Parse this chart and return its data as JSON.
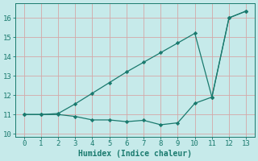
{
  "xlabel": "Humidex (Indice chaleur)",
  "background_color": "#c6eaea",
  "grid_major_color": "#d4a8a8",
  "grid_minor_color": "#ddc8c8",
  "line_color": "#1a7a6e",
  "x_upper": [
    0,
    1,
    2,
    3,
    4,
    5,
    6,
    7,
    8,
    9,
    10,
    11,
    12,
    13
  ],
  "y_upper": [
    11.0,
    11.0,
    11.05,
    11.55,
    12.1,
    12.65,
    13.2,
    13.7,
    14.2,
    14.7,
    15.2,
    11.9,
    16.0,
    16.35
  ],
  "x_lower": [
    0,
    1,
    2,
    3,
    4,
    5,
    6,
    7,
    8,
    9,
    10,
    11,
    12,
    13
  ],
  "y_lower": [
    11.0,
    11.0,
    11.0,
    10.9,
    10.72,
    10.72,
    10.63,
    10.7,
    10.47,
    10.57,
    11.58,
    11.9,
    16.0,
    16.35
  ],
  "xlim": [
    -0.5,
    13.5
  ],
  "ylim": [
    9.85,
    16.75
  ],
  "xticks": [
    0,
    1,
    2,
    3,
    4,
    5,
    6,
    7,
    8,
    9,
    10,
    11,
    12,
    13
  ],
  "yticks": [
    10,
    11,
    12,
    13,
    14,
    15,
    16
  ],
  "tick_fontsize": 6.5,
  "xlabel_fontsize": 7
}
